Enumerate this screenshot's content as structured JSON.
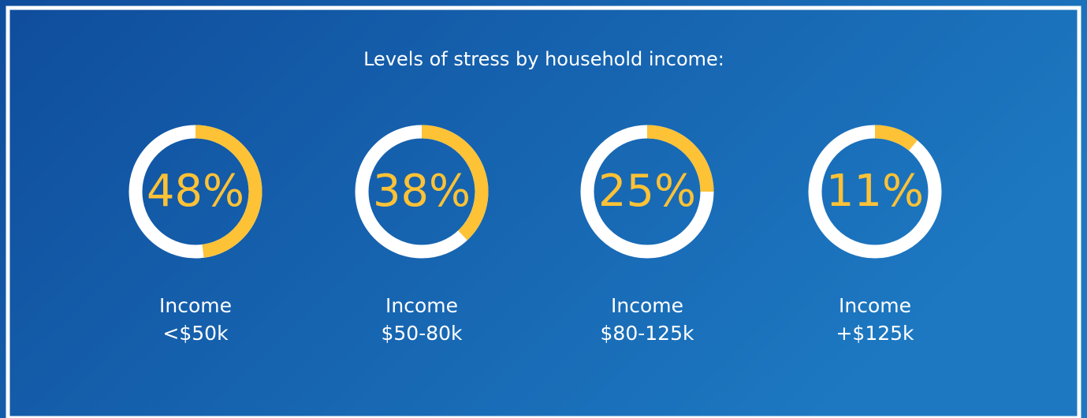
{
  "chart_data": {
    "type": "donut",
    "title": "Levels of stress by household income:",
    "categories": [
      [
        "Income",
        "<$50k"
      ],
      [
        "Income",
        "$50-80k"
      ],
      [
        "Income",
        "$80-125k"
      ],
      [
        "Income",
        "+$125k"
      ]
    ],
    "values": [
      48,
      38,
      25,
      11
    ],
    "value_labels": [
      "48%",
      "38%",
      "25%",
      "11%"
    ],
    "color": "#fdc236"
  }
}
